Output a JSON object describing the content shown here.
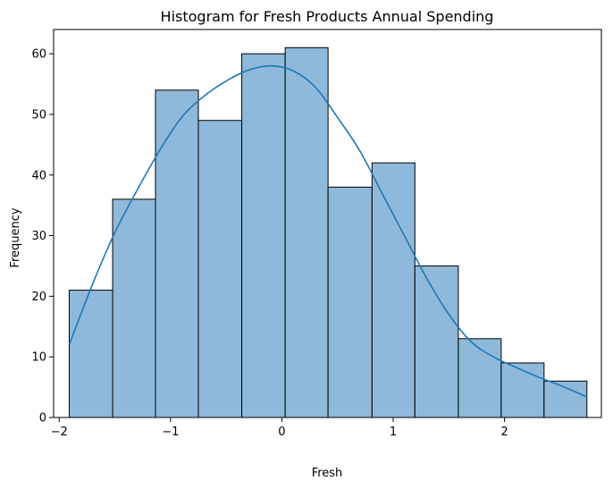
{
  "chart_data": {
    "type": "bar",
    "title": "Histogram for Fresh Products Annual Spending",
    "xlabel": "Fresh",
    "ylabel": "Frequency",
    "xlim": [
      -2.05,
      2.87
    ],
    "ylim": [
      0,
      64
    ],
    "grid": false,
    "bin_edges": [
      -1.91,
      -1.52,
      -1.135,
      -0.75,
      -0.36,
      0.03,
      0.415,
      0.81,
      1.195,
      1.585,
      1.97,
      2.355,
      2.74
    ],
    "counts": [
      21,
      36,
      54,
      49,
      60,
      61,
      38,
      42,
      25,
      13,
      9,
      6
    ],
    "bar_color": "#8fb9da",
    "kde_color": "#1f77b4",
    "kde": {
      "x": [
        -1.91,
        -1.7,
        -1.5,
        -1.3,
        -1.1,
        -0.9,
        -0.7,
        -0.5,
        -0.3,
        -0.1,
        0.1,
        0.3,
        0.5,
        0.7,
        0.9,
        1.1,
        1.3,
        1.5,
        1.7,
        1.9,
        2.1,
        2.3,
        2.5,
        2.74
      ],
      "y": [
        12,
        22,
        30.5,
        37.5,
        44,
        49.5,
        53,
        55.5,
        57.3,
        58,
        57.2,
        54.5,
        49.5,
        44,
        37,
        30,
        23,
        17,
        12.5,
        10,
        8.3,
        6.7,
        5.3,
        3.4
      ]
    },
    "xticks": [
      -2,
      -1,
      0,
      1,
      2
    ],
    "xtick_labels": [
      "−2",
      "−1",
      "0",
      "1",
      "2"
    ],
    "yticks": [
      0,
      10,
      20,
      30,
      40,
      50,
      60
    ],
    "ytick_labels": [
      "0",
      "10",
      "20",
      "30",
      "40",
      "50",
      "60"
    ]
  }
}
